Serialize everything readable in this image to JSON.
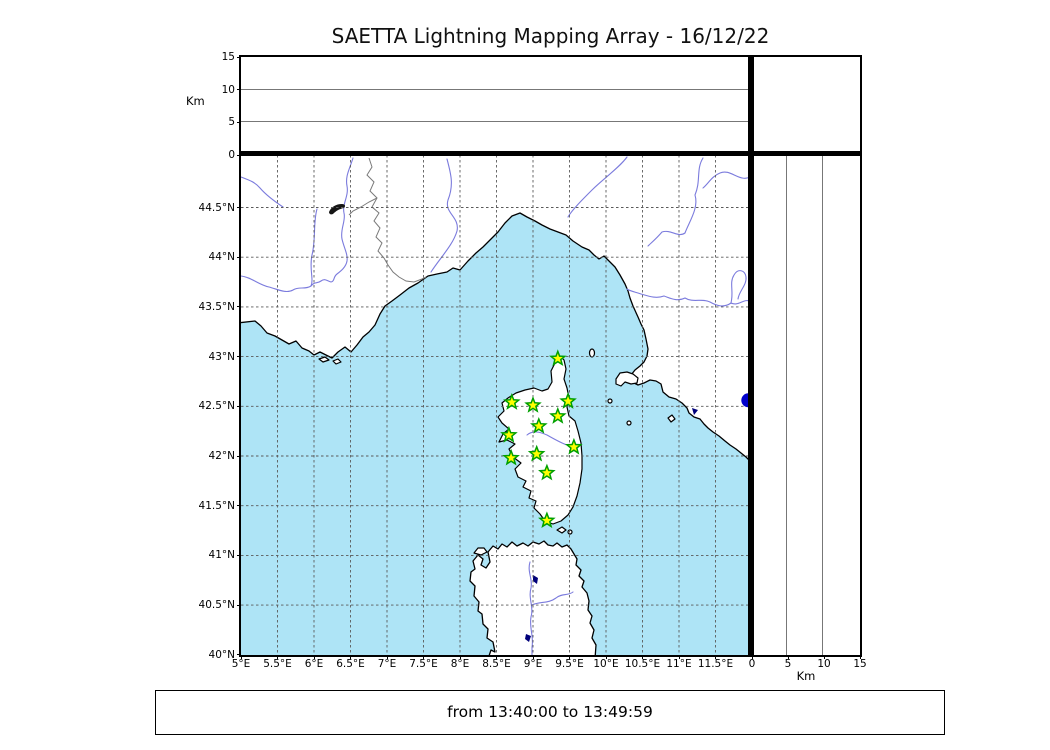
{
  "title": "SAETTA Lightning Mapping Array - 16/12/22",
  "footer": {
    "time_range": "from 13:40:00 to 13:49:59"
  },
  "axes": {
    "altitude_label": "Km",
    "altitude_ticks": [
      {
        "label": "0",
        "value": 0
      },
      {
        "label": "5",
        "value": 5
      },
      {
        "label": "10",
        "value": 10
      },
      {
        "label": "15",
        "value": 15
      }
    ],
    "altitude_gridlines_km": [
      5,
      10
    ],
    "lon_ticks": [
      {
        "label": "5°E",
        "value": 5.0
      },
      {
        "label": "5.5°E",
        "value": 5.5
      },
      {
        "label": "6°E",
        "value": 6.0
      },
      {
        "label": "6.5°E",
        "value": 6.5
      },
      {
        "label": "7°E",
        "value": 7.0
      },
      {
        "label": "7.5°E",
        "value": 7.5
      },
      {
        "label": "8°E",
        "value": 8.0
      },
      {
        "label": "8.5°E",
        "value": 8.5
      },
      {
        "label": "9°E",
        "value": 9.0
      },
      {
        "label": "9.5°E",
        "value": 9.5
      },
      {
        "label": "10°E",
        "value": 10.0
      },
      {
        "label": "10.5°E",
        "value": 10.5
      },
      {
        "label": "11°E",
        "value": 11.0
      },
      {
        "label": "11.5°E",
        "value": 11.5
      }
    ],
    "lat_ticks": [
      {
        "label": "40°N",
        "value": 40.0
      },
      {
        "label": "40.5°N",
        "value": 40.5
      },
      {
        "label": "41°N",
        "value": 41.0
      },
      {
        "label": "41.5°N",
        "value": 41.5
      },
      {
        "label": "42°N",
        "value": 42.0
      },
      {
        "label": "42.5°N",
        "value": 42.5
      },
      {
        "label": "43°N",
        "value": 43.0
      },
      {
        "label": "43.5°N",
        "value": 43.5
      },
      {
        "label": "44°N",
        "value": 44.0
      },
      {
        "label": "44.5°N",
        "value": 44.5
      }
    ]
  },
  "colors": {
    "sea": "#aee4f6",
    "land": "#ffffff",
    "coastline": "#000000",
    "gridline": "#5a5a5a",
    "river": "#7b7bdd",
    "country_border": "#7a7a7a",
    "station_fill": "#ffff00",
    "station_edge": "#00a000",
    "extra_marker": "#0000cc",
    "lake": "#00007a"
  },
  "chart_data": {
    "type": "scatter",
    "title": "SAETTA Lightning Mapping Array - 16/12/22",
    "time_window": "from 13:40:00 to 13:49:59",
    "layout": "map with longitude-altitude panel on top and latitude-altitude panel on right",
    "map_lon_range": [
      5.0,
      12.0
    ],
    "map_lat_range": [
      40.0,
      45.03
    ],
    "altitude_range_km": [
      0,
      15
    ],
    "altitude_ticks_km": [
      0,
      5,
      10,
      15
    ],
    "grid": "dashed 0.5-degree graticule",
    "series": [
      {
        "name": "LMA stations (Corsica)",
        "marker": "star",
        "fill": "#ffff00",
        "edge": "#00a000",
        "points_lon_lat": [
          [
            9.34,
            42.98
          ],
          [
            8.71,
            42.54
          ],
          [
            9.0,
            42.51
          ],
          [
            9.48,
            42.55
          ],
          [
            9.34,
            42.4
          ],
          [
            9.08,
            42.3
          ],
          [
            8.67,
            42.21
          ],
          [
            9.56,
            42.09
          ],
          [
            9.05,
            42.02
          ],
          [
            8.7,
            41.98
          ],
          [
            9.19,
            41.83
          ],
          [
            9.19,
            41.35
          ]
        ]
      },
      {
        "name": "auxiliary site marker",
        "marker": "circle",
        "fill": "#0000cc",
        "points_lon_lat": [
          [
            11.95,
            42.56
          ]
        ]
      }
    ],
    "lightning_sources_plotted": 0
  }
}
